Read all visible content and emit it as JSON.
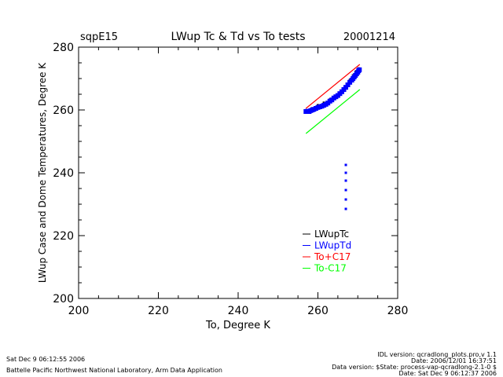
{
  "header": {
    "site": "sqpE15",
    "title": "LWup Tc & Td vs To tests",
    "date": "20001214"
  },
  "footer": {
    "left_line1": "Sat Dec  9 06:12:55 2006",
    "left_line2": "Battelle Pacific Northwest National Laboratory, Arm Data Application",
    "right_line1": "IDL version: qcradlong_plots.pro,v 1.1",
    "right_line2": "Date: 2006/12/01 16:37:51",
    "right_line3": "Data version: $State: process-vap-qcradlong-2.1-0 $",
    "right_line4": "Date: Sat Dec  9 06:12:37 2006"
  },
  "colors": {
    "LWupTc": "#000000",
    "LWupTd": "#0000ff",
    "To+C17": "#ff0000",
    "To-C17": "#00ff00"
  },
  "chart_data": {
    "type": "scatter",
    "title": "LWup Tc & Td vs To tests",
    "xlabel": "To, Degree K",
    "ylabel": "LWup Case and Dome Temperatures, Degree K",
    "xlim": [
      200,
      280
    ],
    "ylim": [
      200,
      280
    ],
    "x_ticks": [
      "200",
      "220",
      "240",
      "260",
      "280"
    ],
    "y_ticks": [
      "200",
      "220",
      "240",
      "260",
      "280"
    ],
    "grid": false,
    "legend": "lower-right, inside plot",
    "series": [
      {
        "name": "LWupTc",
        "mode": "points",
        "x": [
          257.2,
          258.5,
          260.0,
          261.5,
          263.0,
          264.5,
          266.0,
          267.0,
          268.0,
          268.8,
          269.5,
          270.2
        ],
        "y": [
          259.8,
          260.5,
          261.5,
          262.3,
          263.3,
          264.3,
          266.0,
          267.5,
          269.5,
          271.0,
          272.2,
          273.2
        ]
      },
      {
        "name": "LWupTd",
        "mode": "points",
        "x": [
          257.0,
          257.4,
          257.8,
          258.2,
          258.6,
          259.0,
          259.5,
          260.0,
          260.5,
          261.0,
          261.5,
          262.0,
          262.5,
          263.0,
          263.5,
          264.0,
          264.5,
          265.0,
          265.5,
          266.0,
          266.5,
          267.0,
          267.5,
          268.0,
          268.5,
          268.8,
          269.1,
          269.4,
          269.7,
          270.0,
          270.2,
          270.4,
          267.0,
          267.0,
          267.0,
          267.0,
          267.0,
          267.0
        ],
        "y": [
          259.5,
          259.6,
          259.5,
          259.8,
          260.0,
          260.2,
          260.5,
          260.8,
          261.0,
          261.2,
          261.5,
          261.8,
          262.2,
          262.8,
          263.2,
          263.8,
          264.2,
          264.6,
          265.2,
          265.8,
          266.5,
          267.2,
          268.0,
          268.8,
          269.5,
          270.0,
          270.5,
          271.0,
          271.5,
          272.0,
          272.5,
          272.8,
          242.5,
          240.0,
          237.5,
          234.5,
          231.5,
          228.5
        ]
      },
      {
        "name": "To+C17",
        "mode": "line",
        "x": [
          257.0,
          270.5
        ],
        "y": [
          260.5,
          274.5
        ]
      },
      {
        "name": "To-C17",
        "mode": "line",
        "x": [
          257.0,
          270.5
        ],
        "y": [
          252.5,
          266.5
        ]
      }
    ]
  }
}
